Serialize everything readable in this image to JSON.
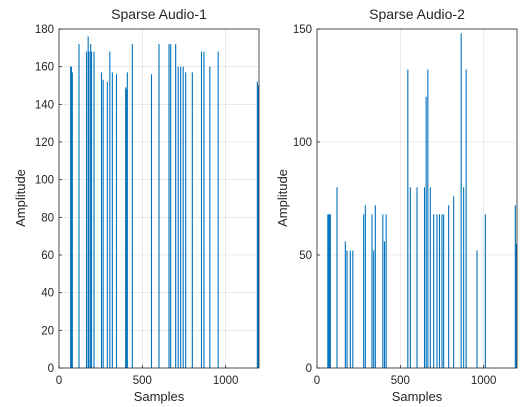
{
  "chart_data": [
    {
      "type": "bar",
      "title": "Sparse Audio-1",
      "xlabel": "Samples",
      "ylabel": "Amplitude",
      "xlim": [
        0,
        1200
      ],
      "ylim": [
        0,
        180
      ],
      "xticks": [
        0,
        500,
        1000
      ],
      "yticks": [
        0,
        20,
        40,
        60,
        80,
        100,
        120,
        140,
        160,
        180
      ],
      "grid": true,
      "color": "#0072BD",
      "x": [
        70,
        75,
        80,
        120,
        165,
        175,
        180,
        190,
        195,
        210,
        255,
        265,
        290,
        305,
        320,
        345,
        400,
        405,
        410,
        440,
        555,
        600,
        660,
        670,
        700,
        715,
        730,
        745,
        760,
        800,
        855,
        870,
        905,
        955,
        1190,
        1195
      ],
      "values": [
        160,
        160,
        157,
        172,
        168,
        176,
        168,
        172,
        168,
        168,
        157,
        153,
        152,
        168,
        157,
        156,
        149,
        148,
        157,
        172,
        156,
        172,
        172,
        172,
        172,
        160,
        160,
        160,
        157,
        157,
        168,
        168,
        160,
        168,
        152,
        150
      ]
    },
    {
      "type": "bar",
      "title": "Sparse Audio-2",
      "xlabel": "Samples",
      "ylabel": "Amplitude",
      "xlim": [
        0,
        1200
      ],
      "ylim": [
        0,
        150
      ],
      "xticks": [
        0,
        500,
        1000
      ],
      "yticks": [
        0,
        50,
        100,
        150
      ],
      "grid": true,
      "color": "#0072BD",
      "x": [
        65,
        70,
        75,
        80,
        120,
        170,
        180,
        200,
        215,
        280,
        290,
        330,
        340,
        350,
        395,
        405,
        415,
        545,
        560,
        600,
        645,
        655,
        665,
        680,
        700,
        720,
        735,
        750,
        760,
        790,
        820,
        865,
        880,
        895,
        960,
        1010,
        1190,
        1195
      ],
      "values": [
        68,
        68,
        68,
        68,
        80,
        56,
        52,
        52,
        52,
        68,
        72,
        68,
        52,
        72,
        68,
        56,
        68,
        132,
        80,
        80,
        80,
        120,
        132,
        80,
        68,
        68,
        68,
        68,
        68,
        72,
        76,
        148,
        80,
        132,
        52,
        68,
        72,
        55
      ]
    }
  ]
}
